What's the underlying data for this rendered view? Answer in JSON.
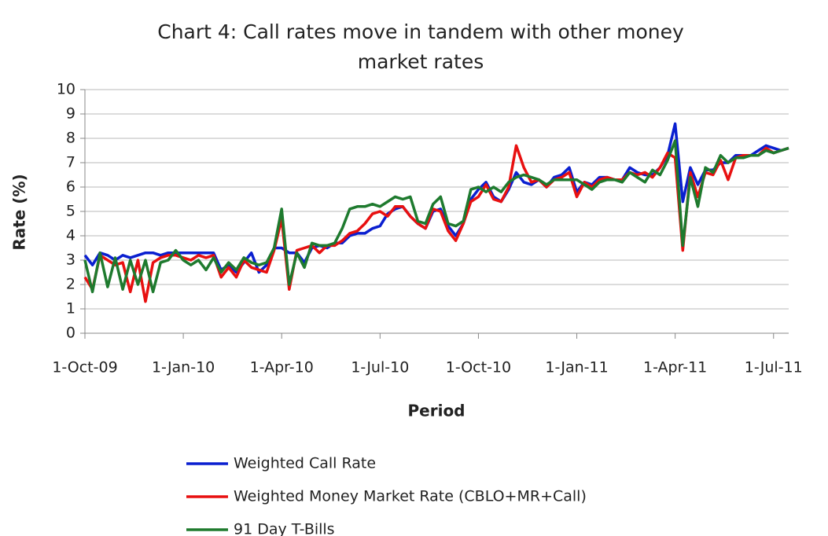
{
  "chart_data": {
    "type": "line",
    "title": [
      "Chart  4: Call rates move in tandem with other money",
      "market rates"
    ],
    "xlabel": "Period",
    "ylabel": "Rate (%)",
    "categories": [
      "1-Oct-09",
      null,
      null,
      null,
      null,
      null,
      null,
      null,
      null,
      null,
      null,
      null,
      null,
      "1-Jan-10",
      null,
      null,
      null,
      null,
      null,
      null,
      null,
      null,
      null,
      null,
      null,
      null,
      "1-Apr-10",
      null,
      null,
      null,
      null,
      null,
      null,
      null,
      null,
      null,
      null,
      null,
      null,
      "1-Jul-10",
      null,
      null,
      null,
      null,
      null,
      null,
      null,
      null,
      null,
      null,
      null,
      null,
      "1-Oct-10",
      null,
      null,
      null,
      null,
      null,
      null,
      null,
      null,
      null,
      null,
      null,
      null,
      "1-Jan-11",
      null,
      null,
      null,
      null,
      null,
      null,
      null,
      null,
      null,
      null,
      null,
      null,
      "1-Apr-11",
      null,
      null,
      null,
      null,
      null,
      null,
      null,
      null,
      null,
      null,
      null,
      null,
      "1-Jul-11",
      null,
      null
    ],
    "series": [
      {
        "name": "Weighted Call Rate",
        "color": "#0a1fd0",
        "values": [
          3.2,
          2.8,
          3.3,
          3.2,
          3.0,
          3.2,
          3.1,
          3.2,
          3.3,
          3.3,
          3.2,
          3.3,
          3.3,
          3.3,
          3.3,
          3.3,
          3.3,
          3.3,
          2.6,
          2.8,
          2.5,
          2.9,
          3.3,
          2.5,
          2.8,
          3.5,
          3.5,
          3.3,
          3.3,
          2.9,
          3.5,
          3.6,
          3.5,
          3.7,
          3.7,
          4.0,
          4.1,
          4.1,
          4.3,
          4.4,
          4.9,
          5.1,
          5.2,
          4.8,
          4.5,
          4.3,
          5.0,
          5.1,
          4.4,
          4.0,
          4.5,
          5.5,
          5.9,
          6.2,
          5.6,
          5.4,
          5.9,
          6.6,
          6.2,
          6.1,
          6.3,
          6.0,
          6.4,
          6.5,
          6.8,
          5.8,
          6.2,
          6.1,
          6.4,
          6.4,
          6.3,
          6.3,
          6.8,
          6.6,
          6.5,
          6.5,
          6.8,
          7.3,
          8.6,
          5.4,
          6.8,
          6.1,
          6.7,
          6.7,
          7.0,
          7.0,
          7.3,
          7.3,
          7.3,
          7.5,
          7.7,
          7.6,
          7.5,
          7.6
        ]
      },
      {
        "name": "Weighted Money Market Rate (CBLO+MR+Call)",
        "color": "#e81010",
        "values": [
          2.3,
          1.8,
          3.2,
          3.0,
          2.8,
          2.9,
          1.7,
          3.0,
          1.3,
          2.9,
          3.1,
          3.2,
          3.2,
          3.1,
          3.0,
          3.2,
          3.1,
          3.2,
          2.3,
          2.7,
          2.3,
          3.0,
          2.7,
          2.6,
          2.5,
          3.4,
          4.7,
          1.8,
          3.4,
          3.5,
          3.6,
          3.3,
          3.6,
          3.6,
          3.8,
          4.1,
          4.2,
          4.5,
          4.9,
          5.0,
          4.8,
          5.2,
          5.2,
          4.8,
          4.5,
          4.3,
          5.1,
          5.0,
          4.2,
          3.8,
          4.5,
          5.4,
          5.6,
          6.1,
          5.5,
          5.4,
          6.0,
          7.7,
          6.8,
          6.2,
          6.3,
          6.0,
          6.3,
          6.4,
          6.6,
          5.6,
          6.2,
          6.0,
          6.3,
          6.4,
          6.3,
          6.3,
          6.6,
          6.5,
          6.6,
          6.4,
          6.8,
          7.4,
          7.2,
          3.4,
          6.6,
          5.6,
          6.6,
          6.5,
          7.1,
          6.3,
          7.2,
          7.3,
          7.3,
          7.3,
          7.6,
          7.4,
          7.5,
          7.6
        ]
      },
      {
        "name": "91 Day T-Bills",
        "color": "#1e7a2e",
        "values": [
          3.0,
          1.7,
          3.3,
          1.9,
          3.1,
          1.8,
          3.0,
          2.0,
          3.0,
          1.7,
          2.9,
          3.0,
          3.4,
          3.0,
          2.8,
          3.0,
          2.6,
          3.1,
          2.5,
          2.9,
          2.6,
          3.1,
          2.9,
          2.8,
          2.9,
          3.5,
          5.1,
          2.0,
          3.3,
          2.7,
          3.7,
          3.6,
          3.6,
          3.7,
          4.3,
          5.1,
          5.2,
          5.2,
          5.3,
          5.2,
          5.4,
          5.6,
          5.5,
          5.6,
          4.6,
          4.5,
          5.3,
          5.6,
          4.5,
          4.4,
          4.6,
          5.9,
          6.0,
          5.8,
          6.0,
          5.8,
          6.2,
          6.4,
          6.5,
          6.4,
          6.3,
          6.1,
          6.3,
          6.3,
          6.3,
          6.3,
          6.1,
          5.9,
          6.2,
          6.3,
          6.3,
          6.2,
          6.6,
          6.4,
          6.2,
          6.7,
          6.5,
          7.1,
          7.9,
          3.6,
          6.4,
          5.2,
          6.8,
          6.6,
          7.3,
          7.0,
          7.2,
          7.2,
          7.3,
          7.3,
          7.5,
          7.4,
          7.5,
          7.6
        ]
      }
    ],
    "ylim": [
      0,
      10
    ],
    "yticks": [
      0,
      1,
      2,
      3,
      4,
      5,
      6,
      7,
      8,
      9,
      10
    ],
    "grid": true,
    "legend": "bottom"
  }
}
